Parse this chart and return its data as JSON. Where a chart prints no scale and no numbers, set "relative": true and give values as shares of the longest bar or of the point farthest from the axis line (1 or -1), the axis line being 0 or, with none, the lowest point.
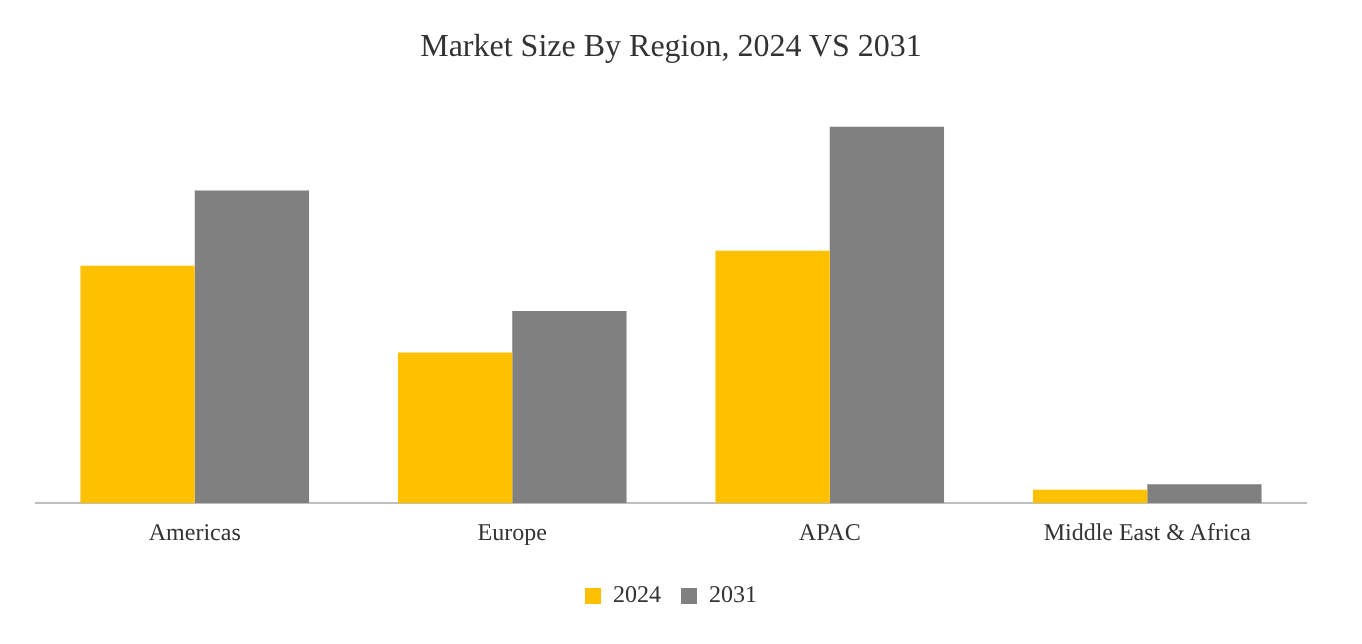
{
  "chart_data": {
    "type": "bar",
    "title": "Market Size By Region, 2024 VS 2031",
    "relative": true,
    "categories": [
      "Americas",
      "Europe",
      "APAC",
      "Middle East & Africa"
    ],
    "series": [
      {
        "name": "2024",
        "color": "#ffc000",
        "values": [
          0.63,
          0.4,
          0.67,
          0.036
        ]
      },
      {
        "name": "2031",
        "color": "#808080",
        "values": [
          0.83,
          0.51,
          1,
          0.05
        ]
      }
    ],
    "legend": "bottom",
    "grid": false
  }
}
